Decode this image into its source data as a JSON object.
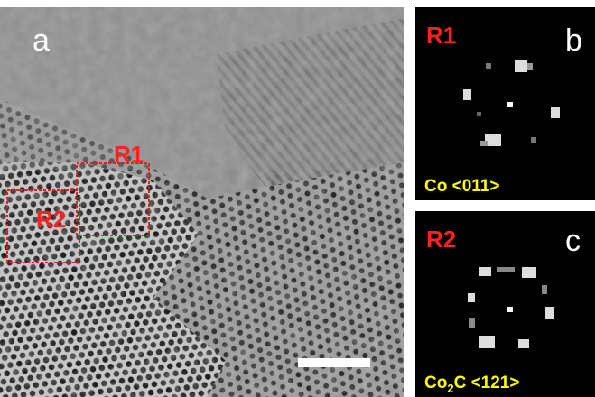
{
  "panel_a": {
    "label": "a",
    "regions": [
      {
        "label": "R1"
      },
      {
        "label": "R2"
      }
    ]
  },
  "panel_b": {
    "label": "b",
    "region": "R1",
    "zone_axis": "Co <011>"
  },
  "panel_c": {
    "label": "c",
    "region": "R2",
    "zone_axis": {
      "element": "Co",
      "subscript": "2",
      "rest": "C <121>"
    }
  }
}
